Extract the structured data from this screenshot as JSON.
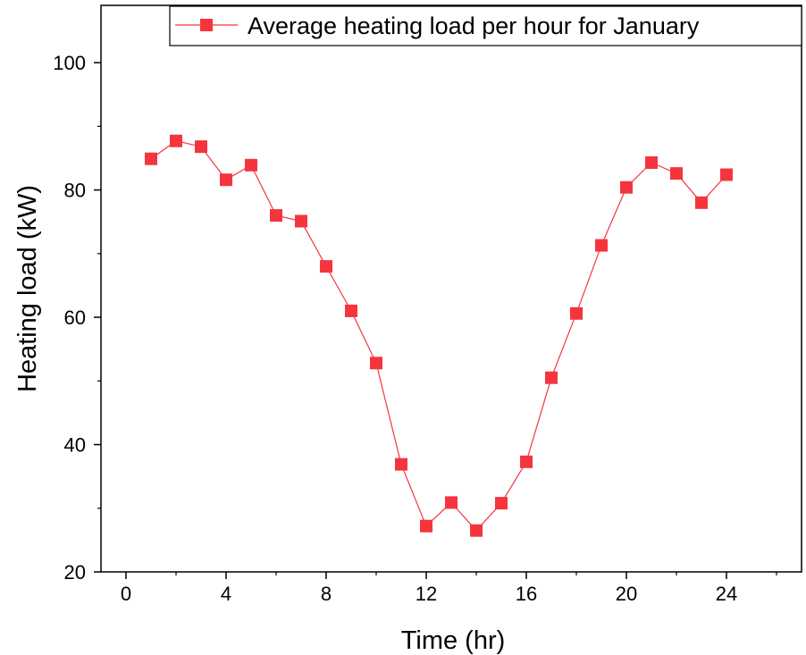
{
  "chart_data": {
    "type": "line",
    "xlabel": "Time (hr)",
    "ylabel": "Heating load (kW)",
    "xlim": [
      -1,
      27
    ],
    "ylim": [
      20,
      109
    ],
    "xticks": [
      0,
      4,
      8,
      12,
      16,
      20,
      24
    ],
    "yticks": [
      20,
      40,
      60,
      80,
      100
    ],
    "grid": false,
    "legend_position": "top-right",
    "series": [
      {
        "name": "Average heating load per hour for January",
        "color": "#f4353d",
        "marker": "square",
        "x": [
          1,
          2,
          3,
          4,
          5,
          6,
          7,
          8,
          9,
          10,
          11,
          12,
          13,
          14,
          15,
          16,
          17,
          18,
          19,
          20,
          21,
          22,
          23,
          24
        ],
        "y": [
          84.9,
          87.7,
          86.8,
          81.6,
          83.9,
          76.0,
          75.1,
          68.0,
          61.0,
          52.8,
          36.9,
          27.2,
          30.9,
          26.5,
          30.8,
          37.3,
          50.5,
          60.6,
          71.3,
          80.4,
          84.3,
          82.6,
          78.0,
          82.4
        ]
      }
    ]
  }
}
